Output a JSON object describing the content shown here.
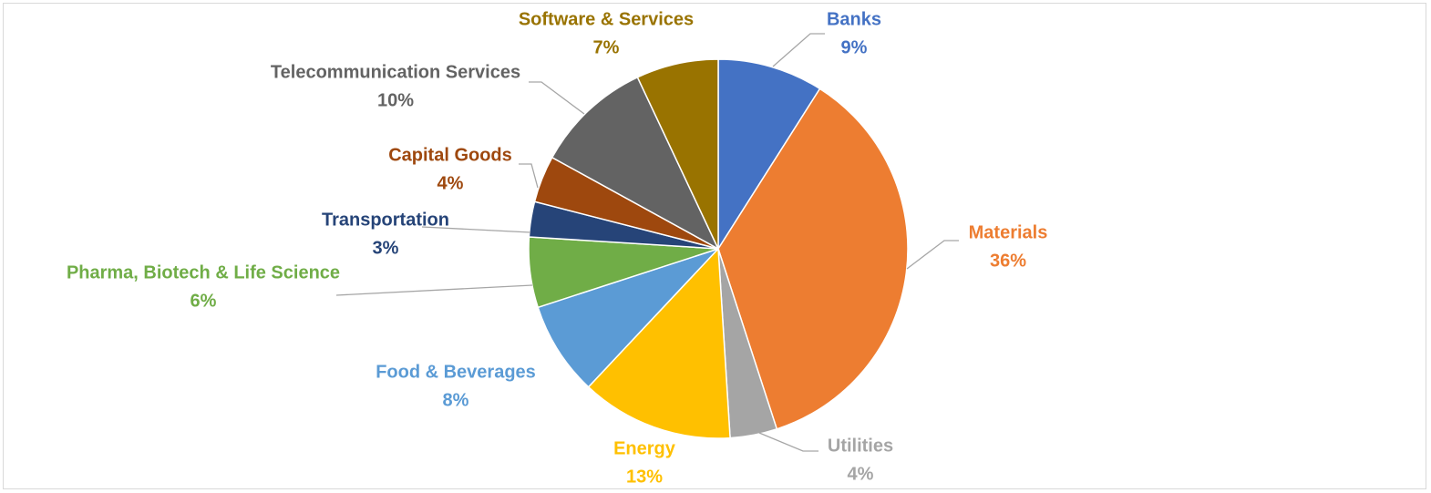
{
  "chart_data": {
    "type": "pie",
    "title": "",
    "start_angle_deg": 0,
    "direction": "clockwise",
    "legend": "none",
    "slices": [
      {
        "label": "Banks",
        "value": 9,
        "value_label": "9%",
        "color": "#4472C4"
      },
      {
        "label": "Materials",
        "value": 36,
        "value_label": "36%",
        "color": "#ED7D31"
      },
      {
        "label": "Utilities",
        "value": 4,
        "value_label": "4%",
        "color": "#A5A5A5"
      },
      {
        "label": "Energy",
        "value": 13,
        "value_label": "13%",
        "color": "#FFC000"
      },
      {
        "label": "Food & Beverages",
        "value": 8,
        "value_label": "8%",
        "color": "#5B9BD5"
      },
      {
        "label": "Pharma, Biotech & Life Science",
        "value": 6,
        "value_label": "6%",
        "color": "#70AD47"
      },
      {
        "label": "Transportation",
        "value": 3,
        "value_label": "3%",
        "color": "#264478"
      },
      {
        "label": "Capital Goods",
        "value": 4,
        "value_label": "4%",
        "color": "#9E480E"
      },
      {
        "label": "Telecommunication Services",
        "value": 10,
        "value_label": "10%",
        "color": "#636363"
      },
      {
        "label": "Software & Services",
        "value": 7,
        "value_label": "7%",
        "color": "#997300"
      }
    ]
  }
}
